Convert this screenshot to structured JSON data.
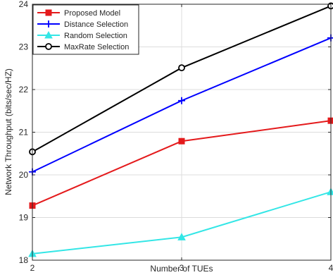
{
  "chart_data": {
    "type": "line",
    "xlabel": "Number of TUEs",
    "ylabel": "Network Throughput (bits/sec/HZ)",
    "x": [
      2,
      3,
      4
    ],
    "xlim": [
      2,
      4
    ],
    "ylim": [
      18,
      24
    ],
    "xticks": [
      "2",
      "3",
      "4"
    ],
    "yticks": [
      "18",
      "19",
      "20",
      "21",
      "22",
      "23",
      "24"
    ],
    "grid": true,
    "legend_position": "top-left",
    "series": [
      {
        "name": "Proposed Model",
        "color": "#e41a1c",
        "marker": "square",
        "values": [
          19.28,
          20.79,
          21.27
        ]
      },
      {
        "name": "Distance Selection",
        "color": "#0000ff",
        "marker": "plus",
        "values": [
          20.07,
          21.74,
          23.21
        ]
      },
      {
        "name": "Random Selection",
        "color": "#33e6e6",
        "marker": "triangle",
        "values": [
          18.15,
          18.54,
          19.6
        ]
      },
      {
        "name": "MaxRate Selection",
        "color": "#000000",
        "marker": "circle",
        "values": [
          20.54,
          22.51,
          23.96
        ]
      }
    ]
  }
}
